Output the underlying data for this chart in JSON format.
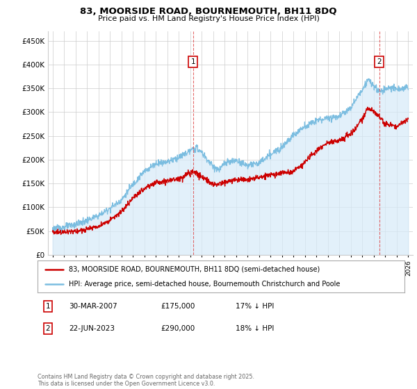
{
  "title": "83, MOORSIDE ROAD, BOURNEMOUTH, BH11 8DQ",
  "subtitle": "Price paid vs. HM Land Registry's House Price Index (HPI)",
  "ylim": [
    0,
    470000
  ],
  "yticks": [
    0,
    50000,
    100000,
    150000,
    200000,
    250000,
    300000,
    350000,
    400000,
    450000
  ],
  "xlim_start": 1994.6,
  "xlim_end": 2026.4,
  "hpi_color": "#7bbde0",
  "hpi_fill_color": "#d6eaf8",
  "price_color": "#cc0000",
  "grid_color": "#cccccc",
  "background_color": "#ffffff",
  "sale1_year": 2007.24,
  "sale1_price": 175000,
  "sale2_year": 2023.47,
  "sale2_price": 290000,
  "sale1_label": "1",
  "sale2_label": "2",
  "legend_red_label": "83, MOORSIDE ROAD, BOURNEMOUTH, BH11 8DQ (semi-detached house)",
  "legend_blue_label": "HPI: Average price, semi-detached house, Bournemouth Christchurch and Poole",
  "table_row1": [
    "1",
    "30-MAR-2007",
    "£175,000",
    "17% ↓ HPI"
  ],
  "table_row2": [
    "2",
    "22-JUN-2023",
    "£290,000",
    "18% ↓ HPI"
  ],
  "footer": "Contains HM Land Registry data © Crown copyright and database right 2025.\nThis data is licensed under the Open Government Licence v3.0."
}
